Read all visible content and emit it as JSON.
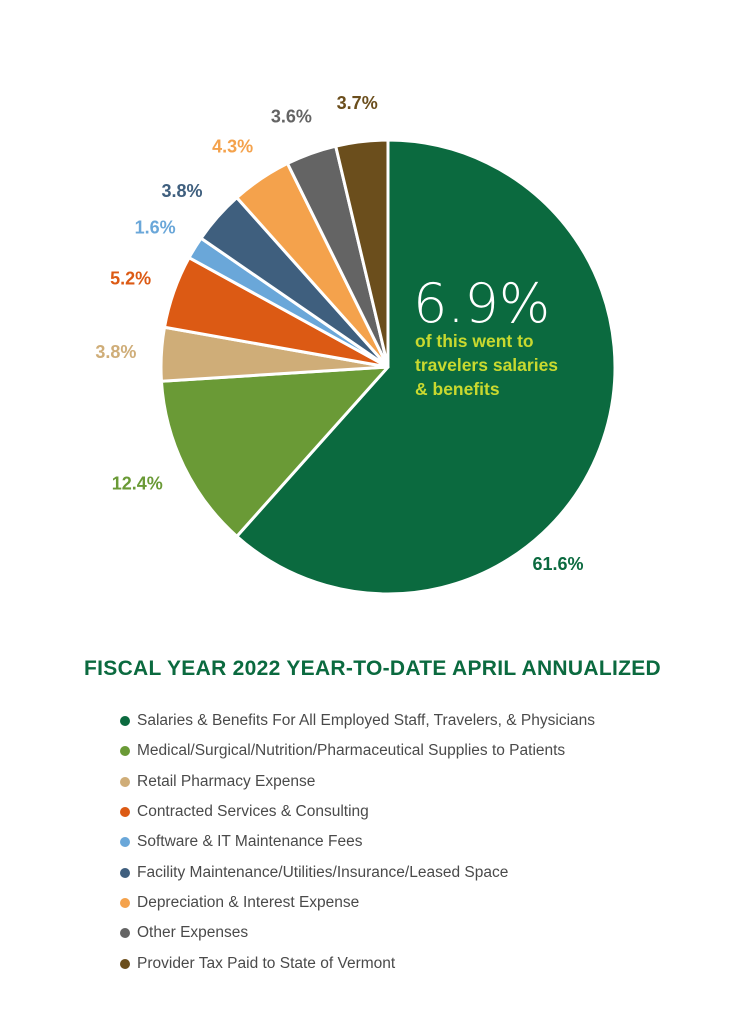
{
  "chart_data": {
    "type": "pie",
    "title": "FISCAL YEAR 2022 YEAR-TO-DATE APRIL ANNUALIZED",
    "slices": [
      {
        "name": "Salaries & Benefits For All Employed Staff, Travelers, & Physicians",
        "value": 61.6,
        "label": "61.6%",
        "color": "#0b6a3f"
      },
      {
        "name": "Medical/Surgical/Nutrition/Pharmaceutical Supplies to Patients",
        "value": 12.4,
        "label": "12.4%",
        "color": "#6a9a36"
      },
      {
        "name": "Retail Pharmacy Expense",
        "value": 3.8,
        "label": "3.8%",
        "color": "#cfad78"
      },
      {
        "name": "Contracted Services & Consulting",
        "value": 5.2,
        "label": "5.2%",
        "color": "#dc5a14"
      },
      {
        "name": "Software & IT Maintenance Fees",
        "value": 1.6,
        "label": "1.6%",
        "color": "#6aa7d9"
      },
      {
        "name": "Facility Maintenance/Utilities/Insurance/Leased Space",
        "value": 3.8,
        "label": "3.8%",
        "color": "#3f5f7e"
      },
      {
        "name": "Depreciation & Interest Expense",
        "value": 4.3,
        "label": "4.3%",
        "color": "#f4a24c"
      },
      {
        "name": "Other Expenses",
        "value": 3.6,
        "label": "3.6%",
        "color": "#646464"
      },
      {
        "name": "Provider Tax Paid to State of Vermont",
        "value": 3.7,
        "label": "3.7%",
        "color": "#6b4e1c"
      }
    ],
    "callout": {
      "value": "6.9%",
      "lines": [
        "of this went to",
        "travelers salaries",
        "& benefits"
      ]
    },
    "legend_position": "bottom",
    "colors": {
      "title": "#0b6a3f",
      "callout_text": "#c9d92f",
      "legend_text": "#4a4a4a"
    }
  }
}
